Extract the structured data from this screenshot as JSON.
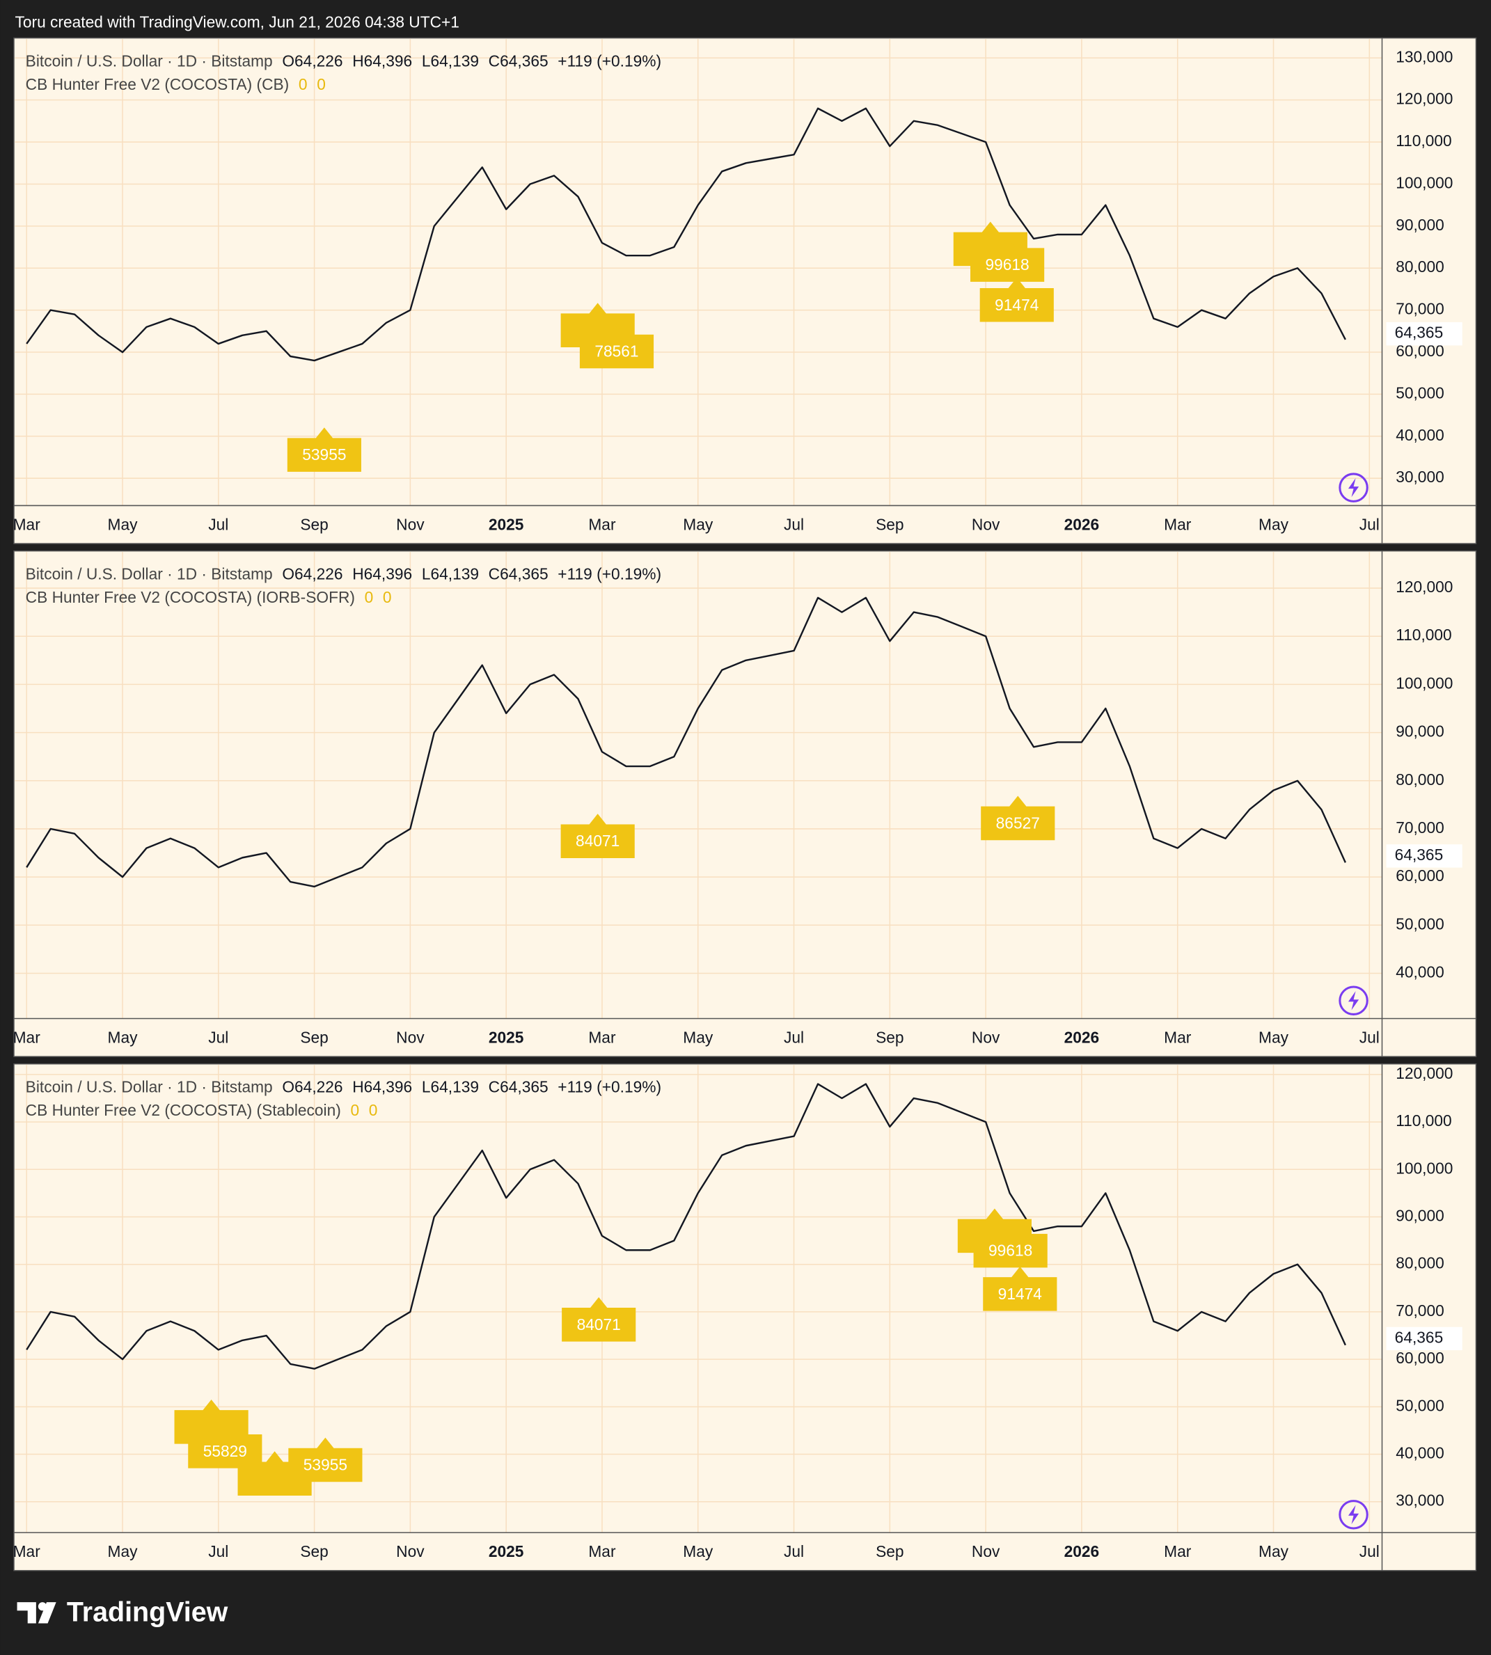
{
  "header": {
    "caption": "Toru created with TradingView.com, Jun 21, 2026 04:38 UTC+1"
  },
  "footer": {
    "brand": "TradingView"
  },
  "chart_data": [
    {
      "type": "line",
      "title": "Bitcoin / U.S. Dollar · 1D · Bitstamp",
      "ohlc": [
        "O64,226",
        "H64,396",
        "L64,139",
        "C64,365",
        "+119 (+0.19%)"
      ],
      "indicator": "CB Hunter Free V2 (COCOSTA) (CB)",
      "indicator_values": [
        "0",
        "0"
      ],
      "categories": [
        "Mar",
        null,
        null,
        null,
        "May",
        null,
        null,
        null,
        "Jul",
        null,
        null,
        null,
        "Sep",
        null,
        null,
        null,
        "Nov",
        null,
        null,
        null,
        "2025",
        null,
        null,
        null,
        "Mar",
        null,
        null,
        null,
        "May",
        null,
        null,
        null,
        "Jul",
        null,
        null,
        null,
        "Sep",
        null,
        null,
        null,
        "Nov",
        null,
        null,
        null,
        "2026",
        null,
        null,
        null,
        "Mar",
        null,
        null,
        null,
        "May",
        null,
        null,
        null,
        "Jul"
      ],
      "values": [
        62000,
        70000,
        69000,
        64000,
        60000,
        66000,
        68000,
        66000,
        62000,
        64000,
        65000,
        59000,
        58000,
        60000,
        62000,
        67000,
        70000,
        90000,
        97000,
        104000,
        94000,
        100000,
        102000,
        97000,
        86000,
        83000,
        83000,
        85000,
        95000,
        103000,
        105000,
        106000,
        107000,
        118000,
        115000,
        118000,
        109000,
        115000,
        114000,
        112000,
        110000,
        95000,
        87000,
        88000,
        88000,
        95000,
        83000,
        68000,
        66000,
        70000,
        68000,
        74000,
        78000,
        80000,
        74000,
        63000,
        null
      ],
      "color": "#131722",
      "ylim": [
        23500,
        134500
      ],
      "yticks": [
        {
          "value": 30000,
          "label": "30,000"
        },
        {
          "value": 40000,
          "label": "40,000"
        },
        {
          "value": 50000,
          "label": "50,000"
        },
        {
          "value": 60000,
          "label": "60,000"
        },
        {
          "value": 70000,
          "label": "70,000"
        },
        {
          "value": 80000,
          "label": "80,000"
        },
        {
          "value": 90000,
          "label": "90,000"
        },
        {
          "value": 100000,
          "label": "100,000"
        },
        {
          "value": 110000,
          "label": "110,000"
        },
        {
          "value": 120000,
          "label": "120,000"
        },
        {
          "value": 130000,
          "label": "130,000"
        }
      ],
      "grid": true,
      "last_price": {
        "value": 64365,
        "label": "64,365"
      },
      "annotations": [
        "53955",
        "78561",
        "99618",
        "91474"
      ]
    },
    {
      "type": "line",
      "title": "Bitcoin / U.S. Dollar · 1D · Bitstamp",
      "ohlc": [
        "O64,226",
        "H64,396",
        "L64,139",
        "C64,365",
        "+119 (+0.19%)"
      ],
      "indicator": "CB Hunter Free V2 (COCOSTA) (IORB-SOFR)",
      "indicator_values": [
        "0",
        "0"
      ],
      "categories": [
        "Mar",
        null,
        null,
        null,
        "May",
        null,
        null,
        null,
        "Jul",
        null,
        null,
        null,
        "Sep",
        null,
        null,
        null,
        "Nov",
        null,
        null,
        null,
        "2025",
        null,
        null,
        null,
        "Mar",
        null,
        null,
        null,
        "May",
        null,
        null,
        null,
        "Jul",
        null,
        null,
        null,
        "Sep",
        null,
        null,
        null,
        "Nov",
        null,
        null,
        null,
        "2026",
        null,
        null,
        null,
        "Mar",
        null,
        null,
        null,
        "May",
        null,
        null,
        null,
        "Jul"
      ],
      "values": [
        62000,
        70000,
        69000,
        64000,
        60000,
        66000,
        68000,
        66000,
        62000,
        64000,
        65000,
        59000,
        58000,
        60000,
        62000,
        67000,
        70000,
        90000,
        97000,
        104000,
        94000,
        100000,
        102000,
        97000,
        86000,
        83000,
        83000,
        85000,
        95000,
        103000,
        105000,
        106000,
        107000,
        118000,
        115000,
        118000,
        109000,
        115000,
        114000,
        112000,
        110000,
        95000,
        87000,
        88000,
        88000,
        95000,
        83000,
        68000,
        66000,
        70000,
        68000,
        74000,
        78000,
        80000,
        74000,
        63000,
        null
      ],
      "color": "#131722",
      "ylim": [
        30600,
        127500
      ],
      "yticks": [
        {
          "value": 40000,
          "label": "40,000"
        },
        {
          "value": 50000,
          "label": "50,000"
        },
        {
          "value": 60000,
          "label": "60,000"
        },
        {
          "value": 70000,
          "label": "70,000"
        },
        {
          "value": 80000,
          "label": "80,000"
        },
        {
          "value": 90000,
          "label": "90,000"
        },
        {
          "value": 100000,
          "label": "100,000"
        },
        {
          "value": 110000,
          "label": "110,000"
        },
        {
          "value": 120000,
          "label": "120,000"
        }
      ],
      "grid": true,
      "last_price": {
        "value": 64365,
        "label": "64,365"
      },
      "annotations": [
        "84071",
        "86527"
      ]
    },
    {
      "type": "line",
      "title": "Bitcoin / U.S. Dollar · 1D · Bitstamp",
      "ohlc": [
        "O64,226",
        "H64,396",
        "L64,139",
        "C64,365",
        "+119 (+0.19%)"
      ],
      "indicator": "CB Hunter Free V2 (COCOSTA) (Stablecoin)",
      "indicator_values": [
        "0",
        "0"
      ],
      "categories": [
        "Mar",
        null,
        null,
        null,
        "May",
        null,
        null,
        null,
        "Jul",
        null,
        null,
        null,
        "Sep",
        null,
        null,
        null,
        "Nov",
        null,
        null,
        null,
        "2025",
        null,
        null,
        null,
        "Mar",
        null,
        null,
        null,
        "May",
        null,
        null,
        null,
        "Jul",
        null,
        null,
        null,
        "Sep",
        null,
        null,
        null,
        "Nov",
        null,
        null,
        null,
        "2026",
        null,
        null,
        null,
        "Mar",
        null,
        null,
        null,
        "May",
        null,
        null,
        null,
        "Jul"
      ],
      "values": [
        62000,
        70000,
        69000,
        64000,
        60000,
        66000,
        68000,
        66000,
        62000,
        64000,
        65000,
        59000,
        58000,
        60000,
        62000,
        67000,
        70000,
        90000,
        97000,
        104000,
        94000,
        100000,
        102000,
        97000,
        86000,
        83000,
        83000,
        85000,
        95000,
        103000,
        105000,
        106000,
        107000,
        118000,
        115000,
        118000,
        109000,
        115000,
        114000,
        112000,
        110000,
        95000,
        87000,
        88000,
        88000,
        95000,
        83000,
        68000,
        66000,
        70000,
        68000,
        74000,
        78000,
        80000,
        74000,
        63000,
        null
      ],
      "color": "#131722",
      "ylim": [
        23500,
        122000
      ],
      "yticks": [
        {
          "value": 30000,
          "label": "30,000"
        },
        {
          "value": 40000,
          "label": "40,000"
        },
        {
          "value": 50000,
          "label": "50,000"
        },
        {
          "value": 60000,
          "label": "60,000"
        },
        {
          "value": 70000,
          "label": "70,000"
        },
        {
          "value": 80000,
          "label": "80,000"
        },
        {
          "value": 90000,
          "label": "90,000"
        },
        {
          "value": 100000,
          "label": "100,000"
        },
        {
          "value": 110000,
          "label": "110,000"
        },
        {
          "value": 120000,
          "label": "120,000"
        }
      ],
      "grid": true,
      "last_price": {
        "value": 64365,
        "label": "64,365"
      },
      "annotations": [
        "84071",
        "99618",
        "91474",
        "55829",
        "53955"
      ]
    }
  ]
}
